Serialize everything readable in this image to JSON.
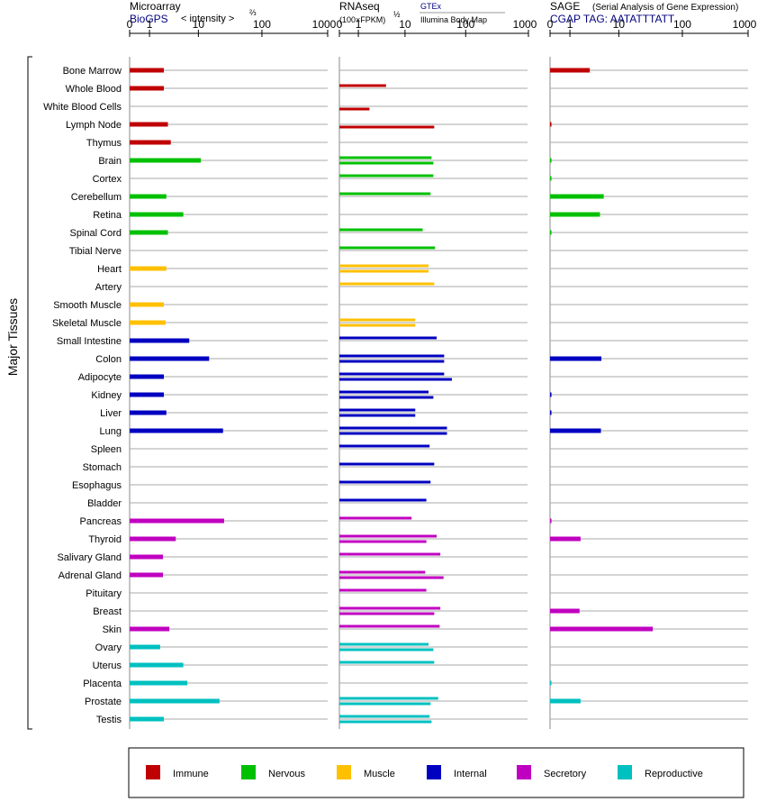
{
  "panels": {
    "microarray": {
      "title": "Microarray",
      "source": "BioGPS",
      "unit_label": "< intensity >",
      "unit_exp": "⅔"
    },
    "rnaseq": {
      "title": "RNAseq",
      "unit_label": "(100×FPKM)",
      "unit_exp": "½",
      "legend_line1": "GTEx",
      "legend_line2": "Illumina Body Map"
    },
    "sage": {
      "title": "SAGE",
      "subtitle": "(Serial Analysis of Gene Expression)",
      "tag_label": "CGAP TAG: AATATTTATT"
    }
  },
  "axis_ticks": [
    "0",
    "1",
    "10",
    "100",
    "1000"
  ],
  "y_axis_label": "Major Tissues",
  "colors": {
    "Immune": "#c00000",
    "Nervous": "#00c000",
    "Muscle": "#ffc000",
    "Internal": "#0000c0",
    "Secretory": "#c000c0",
    "Reproductive": "#00c0c0"
  },
  "legend": [
    "Immune",
    "Nervous",
    "Muscle",
    "Internal",
    "Secretory",
    "Reproductive"
  ],
  "chart_data": {
    "type": "bar",
    "scale": "log1p",
    "xlim": [
      0,
      1000
    ],
    "tissues": [
      {
        "name": "Bone Marrow",
        "group": "Immune",
        "microarray": 2.3,
        "gtex": null,
        "ibm": null,
        "sage": 3.0
      },
      {
        "name": "Whole Blood",
        "group": "Immune",
        "microarray": 2.3,
        "gtex": 4.5,
        "ibm": null,
        "sage": null
      },
      {
        "name": "White Blood Cells",
        "group": "Immune",
        "microarray": null,
        "gtex": null,
        "ibm": 2.0,
        "sage": null
      },
      {
        "name": "Lymph Node",
        "group": "Immune",
        "microarray": 2.8,
        "gtex": null,
        "ibm": 31,
        "sage": 0.05
      },
      {
        "name": "Thymus",
        "group": "Immune",
        "microarray": 3.2,
        "gtex": null,
        "ibm": null,
        "sage": null
      },
      {
        "name": "Brain",
        "group": "Nervous",
        "microarray": 11,
        "gtex": 28,
        "ibm": 30,
        "sage": 0.05
      },
      {
        "name": "Cortex",
        "group": "Nervous",
        "microarray": null,
        "gtex": 30,
        "ibm": null,
        "sage": 0.05
      },
      {
        "name": "Cerebellum",
        "group": "Nervous",
        "microarray": 2.6,
        "gtex": 27,
        "ibm": null,
        "sage": 5.5
      },
      {
        "name": "Retina",
        "group": "Nervous",
        "microarray": 5.5,
        "gtex": null,
        "ibm": null,
        "sage": 4.7
      },
      {
        "name": "Spinal Cord",
        "group": "Nervous",
        "microarray": 2.8,
        "gtex": 20,
        "ibm": null,
        "sage": 0.05
      },
      {
        "name": "Tibial Nerve",
        "group": "Nervous",
        "microarray": null,
        "gtex": 32,
        "ibm": null,
        "sage": null
      },
      {
        "name": "Heart",
        "group": "Muscle",
        "microarray": 2.6,
        "gtex": 25,
        "ibm": 25,
        "sage": null
      },
      {
        "name": "Artery",
        "group": "Muscle",
        "microarray": null,
        "gtex": 31,
        "ibm": null,
        "sage": null
      },
      {
        "name": "Smooth Muscle",
        "group": "Muscle",
        "microarray": 2.3,
        "gtex": null,
        "ibm": null,
        "sage": null
      },
      {
        "name": "Skeletal Muscle",
        "group": "Muscle",
        "microarray": 2.5,
        "gtex": 15,
        "ibm": 15,
        "sage": null
      },
      {
        "name": "Small Intestine",
        "group": "Internal",
        "microarray": 7.0,
        "gtex": 34,
        "ibm": null,
        "sage": null
      },
      {
        "name": "Colon",
        "group": "Internal",
        "microarray": 15,
        "gtex": 45,
        "ibm": 45,
        "sage": 5.0
      },
      {
        "name": "Adipocyte",
        "group": "Internal",
        "microarray": 2.3,
        "gtex": 45,
        "ibm": 60,
        "sage": null
      },
      {
        "name": "Kidney",
        "group": "Internal",
        "microarray": 2.3,
        "gtex": 25,
        "ibm": 30,
        "sage": 0.05
      },
      {
        "name": "Liver",
        "group": "Internal",
        "microarray": 2.6,
        "gtex": 15,
        "ibm": 15,
        "sage": 0.05
      },
      {
        "name": "Lung",
        "group": "Internal",
        "microarray": 25,
        "gtex": 50,
        "ibm": 50,
        "sage": 4.9
      },
      {
        "name": "Spleen",
        "group": "Internal",
        "microarray": null,
        "gtex": 26,
        "ibm": null,
        "sage": null
      },
      {
        "name": "Stomach",
        "group": "Internal",
        "microarray": null,
        "gtex": 31,
        "ibm": null,
        "sage": null
      },
      {
        "name": "Esophagus",
        "group": "Internal",
        "microarray": null,
        "gtex": 27,
        "ibm": null,
        "sage": null
      },
      {
        "name": "Bladder",
        "group": "Internal",
        "microarray": null,
        "gtex": 23,
        "ibm": null,
        "sage": null
      },
      {
        "name": "Pancreas",
        "group": "Secretory",
        "microarray": 26,
        "gtex": 13,
        "ibm": null,
        "sage": 0.05
      },
      {
        "name": "Thyroid",
        "group": "Secretory",
        "microarray": 4.0,
        "gtex": 34,
        "ibm": 23,
        "sage": 1.9
      },
      {
        "name": "Salivary Gland",
        "group": "Secretory",
        "microarray": 2.2,
        "gtex": 39,
        "ibm": null,
        "sage": null
      },
      {
        "name": "Adrenal Gland",
        "group": "Secretory",
        "microarray": 2.2,
        "gtex": 22,
        "ibm": 44,
        "sage": null
      },
      {
        "name": "Pituitary",
        "group": "Secretory",
        "microarray": null,
        "gtex": 23,
        "ibm": null,
        "sage": null
      },
      {
        "name": "Breast",
        "group": "Secretory",
        "microarray": null,
        "gtex": 39,
        "ibm": 31,
        "sage": 1.8
      },
      {
        "name": "Skin",
        "group": "Secretory",
        "microarray": 3.0,
        "gtex": 38,
        "ibm": null,
        "sage": 35
      },
      {
        "name": "Ovary",
        "group": "Reproductive",
        "microarray": 1.9,
        "gtex": 25,
        "ibm": 30,
        "sage": null
      },
      {
        "name": "Uterus",
        "group": "Reproductive",
        "microarray": 5.5,
        "gtex": 31,
        "ibm": null,
        "sage": null
      },
      {
        "name": "Placenta",
        "group": "Reproductive",
        "microarray": 6.5,
        "gtex": null,
        "ibm": null,
        "sage": 0.05
      },
      {
        "name": "Prostate",
        "group": "Reproductive",
        "microarray": 22,
        "gtex": 36,
        "ibm": 27,
        "sage": 1.9
      },
      {
        "name": "Testis",
        "group": "Reproductive",
        "microarray": 2.3,
        "gtex": 26,
        "ibm": 28,
        "sage": null
      }
    ]
  }
}
